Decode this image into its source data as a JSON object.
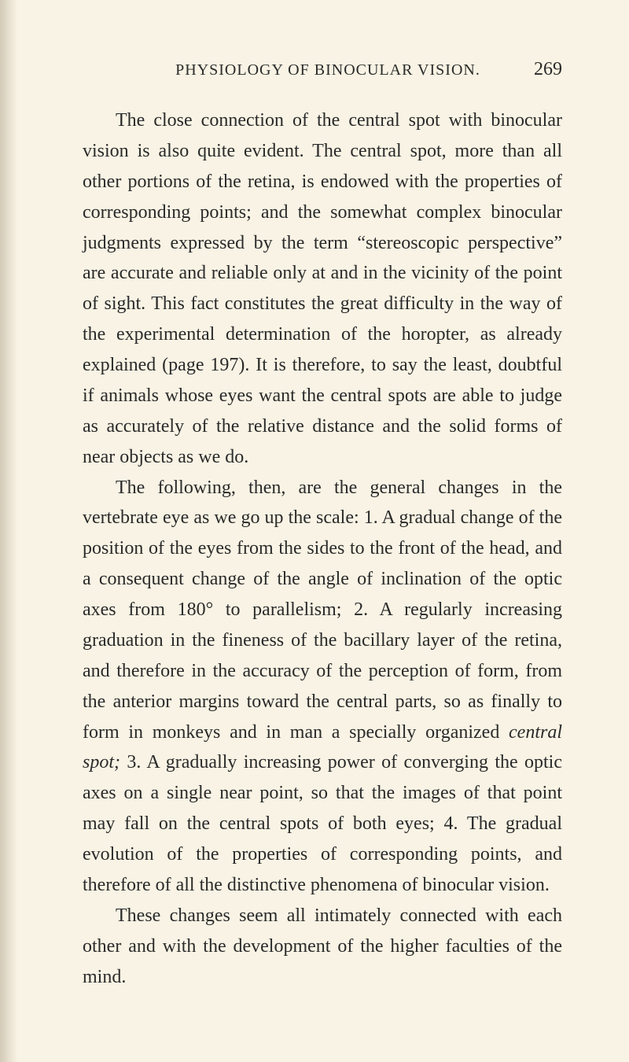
{
  "page": {
    "running_header": "PHYSIOLOGY OF BINOCULAR VISION.",
    "page_number": "269",
    "paragraphs": {
      "p1": "The close connection of the central spot with bin­ocular vision is also quite evident. The central spot, more than all other portions of the retina, is endowed with the properties of corresponding points; and the somewhat complex binocular judgments expressed by the term “stereoscopic perspective” are accurate and reliable only at and in the vicinity of the point of sight. This fact constitutes the great difficulty in the way of the experimental determination of the horopter, as al­ready explained (page 197). It is therefore, to say the least, doubtful if animals whose eyes want the central spots are able to judge as accurately of the relative dis­tance and the solid forms of near objects as we do.",
      "p2_a": "The following, then, are the general changes in the vertebrate eye as we go up the scale: 1. A gradual change of the position of the eyes from the sides to the front of the head, and a consequent change of the angle of inclination of the optic axes from 180° to parallel­ism; 2. A regularly increasing graduation in the fine­ness of the bacillary layer of the retina, and therefore in the accuracy of the perception of form, from the anterior margins toward the central parts, so as finally to form in monkeys and in man a specially organized ",
      "p2_italic": "central spot;",
      "p2_b": " 3. A gradually increasing power of con­verging the optic axes on a single near point, so that the images of that point may fall on the central spots of both eyes; 4. The gradual evolution of the proper­ties of corresponding points, and therefore of all the distinctive phenomena of binocular vision.",
      "p3": "These changes seem all intimately connected with each other and with the development of the higher faculties of the mind."
    }
  },
  "colors": {
    "background": "#f8f3e4",
    "text": "#2a2a2a"
  },
  "typography": {
    "body_fontsize": 24,
    "header_fontsize": 20,
    "line_height": 1.62,
    "font_family": "Georgia serif"
  }
}
